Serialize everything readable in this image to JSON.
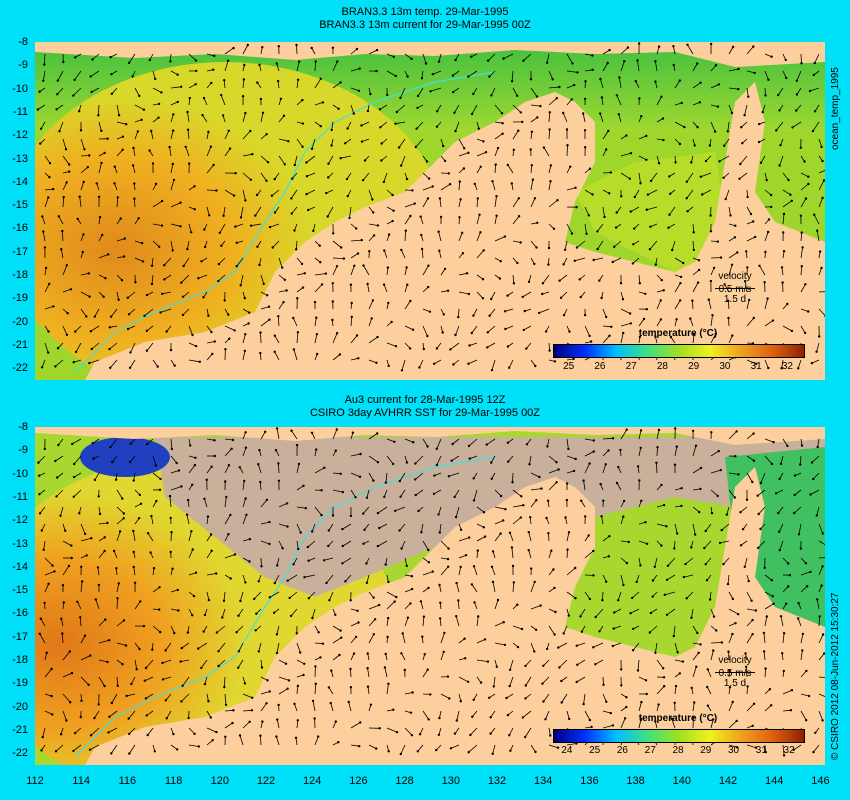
{
  "top": {
    "title1": "BRAN3.3 13m temp. 29-Mar-1995",
    "title2": "BRAN3.3 13m current for 29-Mar-1995 00Z",
    "side_label": "ocean_temp_1995",
    "colorbar_title": "temperature (°C)",
    "colorbar_ticks": [
      "25",
      "26",
      "27",
      "28",
      "29",
      "30",
      "31",
      "32"
    ],
    "velocity_label": "velocity",
    "velocity_scale": "0.5 m/s",
    "velocity_time": "1.5 d"
  },
  "bottom": {
    "title1": "Au3 current for 28-Mar-1995 12Z",
    "title2": "CSIRO 3day AVHRR SST for 29-Mar-1995 00Z",
    "side_label": "© CSIRO 2012  08-Jun-2012 15:30:27",
    "colorbar_title": "temperature (°C)",
    "colorbar_ticks": [
      "24",
      "25",
      "26",
      "27",
      "28",
      "29",
      "30",
      "31",
      "32"
    ],
    "velocity_label": "velocity",
    "velocity_scale": "0.5 m/s",
    "velocity_time": "1.5 d"
  },
  "lat_labels": [
    "-8",
    "-9",
    "-10",
    "-11",
    "-12",
    "-13",
    "-14",
    "-15",
    "-16",
    "-17",
    "-18",
    "-19",
    "-20",
    "-21",
    "-22"
  ],
  "lon_labels": [
    "112",
    "114",
    "116",
    "118",
    "120",
    "122",
    "124",
    "126",
    "128",
    "130",
    "132",
    "134",
    "136",
    "138",
    "140",
    "142",
    "144",
    "146"
  ],
  "colors": {
    "background": "#00e0f8",
    "land": "#fccf9c",
    "missing": "#c8b09a",
    "current_arrow": "#000000",
    "isobath": "#40e0e0"
  }
}
